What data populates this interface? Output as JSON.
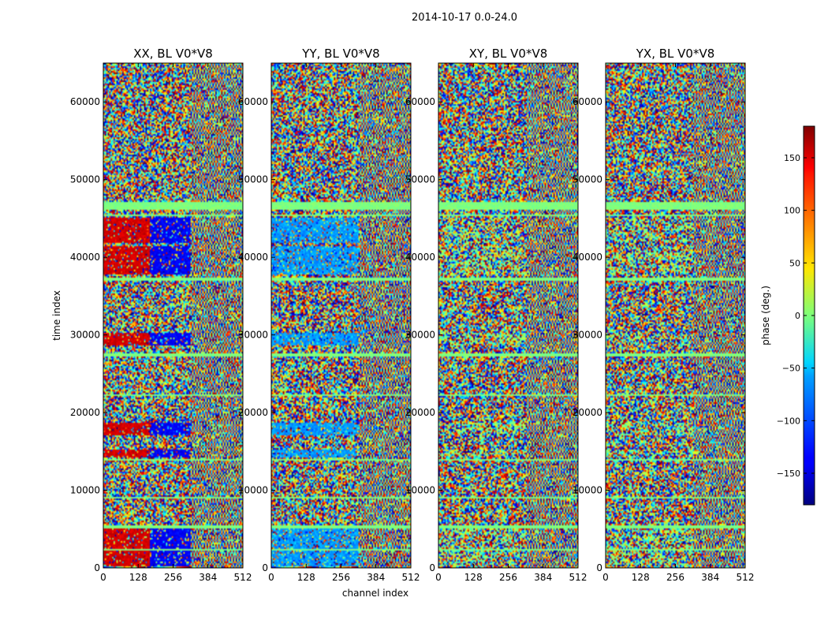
{
  "figure": {
    "suptitle": "2014-10-17 0.0-24.0"
  },
  "chart_data": {
    "type": "heatmap",
    "title": "2014-10-17 0.0-24.0",
    "xlabel": "channel index",
    "ylabel": "time index",
    "xlim": [
      0,
      512
    ],
    "ylim": [
      0,
      65000
    ],
    "xticks": [
      0,
      128,
      256,
      384,
      512
    ],
    "yticks": [
      0,
      10000,
      20000,
      30000,
      40000,
      50000,
      60000
    ],
    "panels": [
      {
        "title": "XX, BL V0*V8",
        "pol": "XX"
      },
      {
        "title": "YY, BL V0*V8",
        "pol": "YY"
      },
      {
        "title": "XY, BL V0*V8",
        "pol": "XY"
      },
      {
        "title": "YX, BL V0*V8",
        "pol": "YX"
      }
    ],
    "colorbar": {
      "label": "phase (deg.)",
      "range": [
        -180,
        180
      ],
      "ticks": [
        -150,
        -100,
        -50,
        0,
        50,
        100,
        150
      ],
      "tick_labels": [
        "−150",
        "−100",
        "−50",
        "0",
        "50",
        "100",
        "150"
      ],
      "colormap": "jet"
    },
    "features": {
      "flagged_bands": [
        [
          46200,
          47200
        ],
        [
          45300,
          45600
        ],
        [
          36900,
          37300
        ],
        [
          27200,
          27600
        ],
        [
          22100,
          22400
        ],
        [
          13800,
          14100
        ],
        [
          8900,
          9100
        ],
        [
          5000,
          5500
        ],
        [
          2200,
          2400
        ]
      ],
      "coherent_bands": [
        [
          37700,
          41500
        ],
        [
          41900,
          45000
        ],
        [
          28600,
          30200
        ],
        [
          14300,
          15300
        ],
        [
          200,
          5000
        ],
        [
          17000,
          18600
        ]
      ],
      "xx_phase_deg": 150,
      "yy_phase_deg": -80
    }
  }
}
